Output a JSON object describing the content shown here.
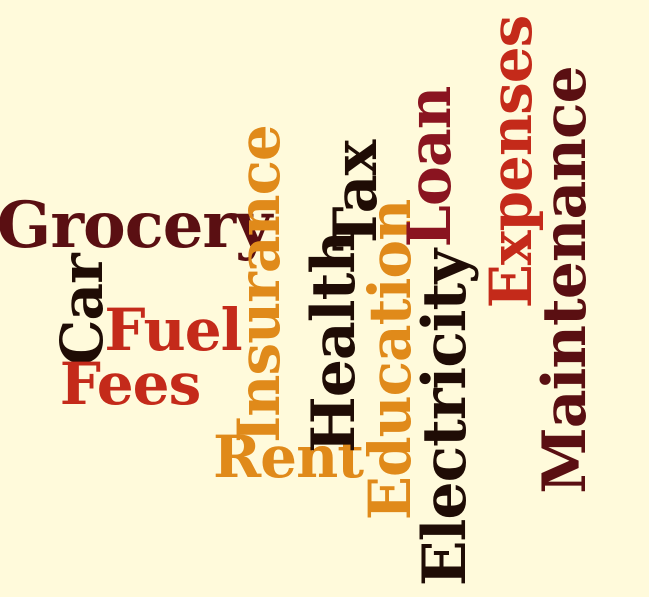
{
  "background": "#fffadb",
  "words": [
    {
      "key": "grocery",
      "text": "Grocery",
      "color": "#5a0f12"
    },
    {
      "key": "car",
      "text": "Car",
      "color": "#1f0c05"
    },
    {
      "key": "fuel",
      "text": "Fuel",
      "color": "#c42a1a"
    },
    {
      "key": "fees",
      "text": "Fees",
      "color": "#c42a1a"
    },
    {
      "key": "insurance",
      "text": "Insurance",
      "color": "#e08a1a"
    },
    {
      "key": "rent",
      "text": "Rent",
      "color": "#e08a1a"
    },
    {
      "key": "health",
      "text": "Health",
      "color": "#1f0c05"
    },
    {
      "key": "tax",
      "text": "Tax",
      "color": "#1f0c05"
    },
    {
      "key": "education",
      "text": "Education",
      "color": "#e08a1a"
    },
    {
      "key": "loan",
      "text": "Loan",
      "color": "#8a1420"
    },
    {
      "key": "electricity",
      "text": "Electricity",
      "color": "#1f0c05"
    },
    {
      "key": "expenses",
      "text": "Expenses",
      "color": "#c42a1a"
    },
    {
      "key": "maintenance",
      "text": "Maintenance",
      "color": "#5a0f12"
    }
  ]
}
